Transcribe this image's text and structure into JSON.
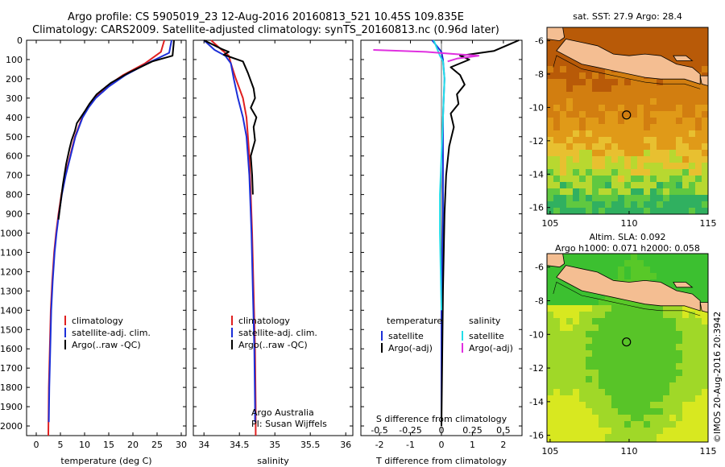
{
  "header": {
    "line1": "Argo profile: CS 5905019_23 12-Aug-2016 20160813_521 10.45S 109.835E",
    "line2": "Climatology: CARS2009. Satellite-adjusted climatology: synTS_20160813.nc (0.96d later)"
  },
  "credit": "©IMOS 20-Aug-2016 20:3942",
  "colors": {
    "climatology": "#e02020",
    "satellite": "#1c2fd8",
    "argo": "#000000",
    "satellite_s": "#22dde8",
    "argo_s": "#e030e0",
    "land": "#f4be92"
  },
  "depth_axis": {
    "range": [
      0,
      2050
    ],
    "ticks": [
      0,
      100,
      200,
      300,
      400,
      500,
      600,
      700,
      800,
      900,
      1000,
      1100,
      1200,
      1300,
      1400,
      1500,
      1600,
      1700,
      1800,
      1900,
      2000
    ]
  },
  "chart_data": [
    {
      "type": "line",
      "xlabel": "temperature (deg C)",
      "ylabel": "",
      "xlim": [
        -2,
        31
      ],
      "xticks": [
        0,
        5,
        10,
        15,
        20,
        25,
        30
      ],
      "legend": [
        "climatology",
        "satellite-adj. clim.",
        "Argo(..raw -QC)"
      ],
      "legend_placement": "bottom-center",
      "series": [
        {
          "name": "climatology",
          "color": "#e02020",
          "x": [
            26.5,
            25.8,
            22.5,
            18,
            14.5,
            12,
            10.5,
            9.5,
            8,
            7,
            6,
            5.2,
            4.6,
            4.1,
            3.7,
            3.3,
            3,
            2.8,
            2.6,
            2.5
          ],
          "y": [
            0,
            60,
            120,
            180,
            240,
            300,
            350,
            400,
            500,
            600,
            700,
            800,
            900,
            1000,
            1100,
            1250,
            1400,
            1600,
            1800,
            2050
          ]
        },
        {
          "name": "satellite-adj. clim.",
          "color": "#1c2fd8",
          "x": [
            28,
            27.5,
            23,
            18.5,
            15,
            12.3,
            10.8,
            9.6,
            8.1,
            7.1,
            6.1,
            5.3,
            4.7,
            4.2,
            3.8,
            3.4,
            3.1,
            2.9,
            2.7,
            2.6
          ],
          "y": [
            0,
            65,
            120,
            180,
            240,
            300,
            350,
            400,
            500,
            600,
            700,
            800,
            900,
            1000,
            1100,
            1250,
            1400,
            1600,
            1800,
            1980
          ]
        },
        {
          "name": "Argo(..raw -QC)",
          "color": "#000000",
          "x": [
            28.5,
            28.2,
            24,
            19,
            15.5,
            12.5,
            11,
            10,
            9.2,
            8.4,
            8,
            7.3,
            6.9,
            6.2,
            5.5,
            5,
            4.6
          ],
          "y": [
            0,
            80,
            110,
            170,
            220,
            280,
            330,
            370,
            400,
            430,
            470,
            520,
            560,
            640,
            750,
            850,
            930
          ]
        }
      ]
    },
    {
      "type": "line",
      "xlabel": "salinity",
      "ylabel": "",
      "xlim": [
        33.85,
        36.1
      ],
      "xticks": [
        34,
        34.5,
        35,
        35.5,
        36
      ],
      "legend": [
        "climatology",
        "satellite-adj. clim.",
        "Argo(..raw -QC)"
      ],
      "legend_placement": "bottom-center",
      "annotations": [
        "Argo Australia",
        "PI: Susan Wijffels"
      ],
      "series": [
        {
          "name": "climatology",
          "color": "#e02020",
          "x": [
            34.1,
            34.25,
            34.35,
            34.38,
            34.45,
            34.55,
            34.6,
            34.62,
            34.64,
            34.65,
            34.66,
            34.68,
            34.7,
            34.72,
            34.73,
            34.73
          ],
          "y": [
            0,
            50,
            80,
            120,
            200,
            300,
            400,
            500,
            600,
            700,
            800,
            1000,
            1300,
            1600,
            1900,
            2050
          ]
        },
        {
          "name": "satellite-adj. clim.",
          "color": "#1c2fd8",
          "x": [
            34.0,
            34.15,
            34.3,
            34.38,
            34.42,
            34.48,
            34.55,
            34.6,
            34.62,
            34.64,
            34.65,
            34.67,
            34.69,
            34.71,
            34.72,
            34.72
          ],
          "y": [
            0,
            50,
            80,
            120,
            200,
            300,
            400,
            500,
            600,
            700,
            800,
            1000,
            1300,
            1600,
            1900,
            1980
          ]
        },
        {
          "name": "Argo(..raw -QC)",
          "color": "#000000",
          "x": [
            34.0,
            34.25,
            34.35,
            34.28,
            34.55,
            34.62,
            34.7,
            34.72,
            34.66,
            34.74,
            34.7,
            34.72,
            34.66,
            34.68,
            34.69
          ],
          "y": [
            0,
            45,
            60,
            75,
            110,
            170,
            250,
            300,
            350,
            400,
            450,
            520,
            600,
            700,
            800
          ]
        }
      ]
    },
    {
      "type": "line",
      "xlabel": "T difference from climatology",
      "x2label": "S difference from climatology",
      "ylabel": "",
      "xlim": [
        -2.6,
        2.6
      ],
      "xticks": [
        -2,
        -1,
        0,
        1,
        2
      ],
      "x2ticks": [
        -0.5,
        -0.25,
        0,
        0.25,
        0.5
      ],
      "legend": [
        "temperature",
        "satellite",
        "Argo(-adj)",
        "salinity",
        "satellite",
        "Argo(-adj)"
      ],
      "legend_placement": "bottom-center",
      "series": [
        {
          "name": "satellite",
          "group": "temperature",
          "color": "#1c2fd8",
          "x": [
            -0.3,
            0,
            0.05,
            0.1,
            0.05,
            0.05,
            0.05,
            0,
            0
          ],
          "y": [
            0,
            60,
            100,
            200,
            400,
            600,
            900,
            1400,
            2000
          ]
        },
        {
          "name": "Argo(-adj)",
          "group": "temperature",
          "color": "#000000",
          "x": [
            2.5,
            1.7,
            0.6,
            0.9,
            0.3,
            0.6,
            0.75,
            0.5,
            0.55,
            0.3,
            0.4,
            0.25,
            0.15,
            0.1,
            0.05,
            0
          ],
          "y": [
            0,
            55,
            80,
            100,
            140,
            180,
            230,
            280,
            330,
            380,
            450,
            550,
            700,
            900,
            1300,
            2000
          ]
        },
        {
          "name": "satellite",
          "group": "salinity",
          "color": "#22dde8",
          "x": [
            -0.25,
            -0.1,
            -0.05,
            0.05,
            0.1,
            0.05,
            0.0,
            -0.05,
            -0.05,
            0
          ],
          "y": [
            0,
            60,
            80,
            110,
            200,
            400,
            600,
            800,
            1000,
            1400
          ]
        },
        {
          "name": "Argo(-adj)",
          "group": "salinity",
          "color": "#e030e0",
          "x": [
            -2.2,
            -0.5,
            0.3,
            1.2,
            0.5,
            0.2
          ],
          "y": [
            50,
            60,
            70,
            80,
            95,
            110
          ]
        }
      ]
    }
  ],
  "maps": [
    {
      "label": "sat. SST: 27.9 Argo: 28.4",
      "lon_ticks": [
        105,
        110,
        115
      ],
      "lat_ticks": [
        -6,
        -8,
        -10,
        -12,
        -14,
        -16
      ],
      "lon_range": [
        104.8,
        115
      ],
      "lat_range": [
        -16.4,
        -5.2
      ],
      "marker": [
        109.835,
        -10.45
      ]
    },
    {
      "label": "Altim. SLA: 0.092",
      "label2": "Argo h1000: 0.071 h2000: 0.058",
      "lon_ticks": [
        105,
        110,
        115
      ],
      "lat_ticks": [
        -6,
        -8,
        -10,
        -12,
        -14,
        -16
      ],
      "lon_range": [
        104.8,
        115
      ],
      "lat_range": [
        -16.4,
        -5.2
      ],
      "marker": [
        109.835,
        -10.45
      ]
    }
  ]
}
